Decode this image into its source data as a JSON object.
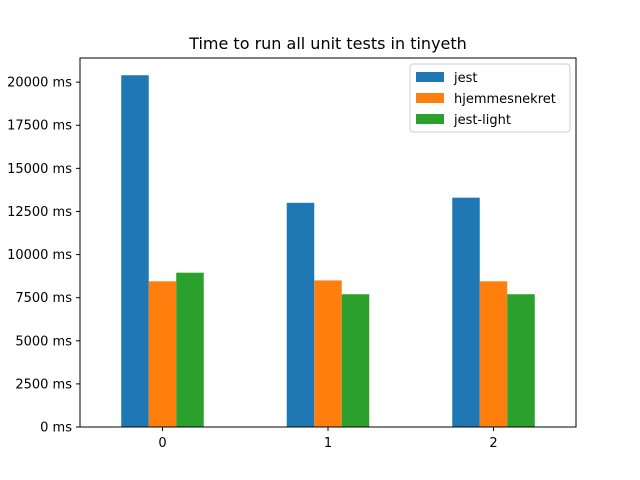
{
  "chart_data": {
    "type": "bar",
    "title": "Time to run all unit tests in tinyeth",
    "xlabel": "",
    "ylabel": "",
    "categories": [
      "0",
      "1",
      "2"
    ],
    "series": [
      {
        "name": "jest",
        "color": "#1f77b4",
        "values": [
          20400,
          13000,
          13300
        ]
      },
      {
        "name": "hjemmesnekret",
        "color": "#ff7f0e",
        "values": [
          8450,
          8500,
          8450
        ]
      },
      {
        "name": "jest-light",
        "color": "#2ca02c",
        "values": [
          8950,
          7700,
          7700
        ]
      }
    ],
    "ylim": [
      0,
      21400
    ],
    "yticks": [
      0,
      2500,
      5000,
      7500,
      10000,
      12500,
      15000,
      17500,
      20000
    ],
    "ytick_labels": [
      "0 ms",
      "2500 ms",
      "5000 ms",
      "7500 ms",
      "10000 ms",
      "12500 ms",
      "15000 ms",
      "17500 ms",
      "20000 ms"
    ],
    "legend_position": "top-right",
    "grid": false
  }
}
